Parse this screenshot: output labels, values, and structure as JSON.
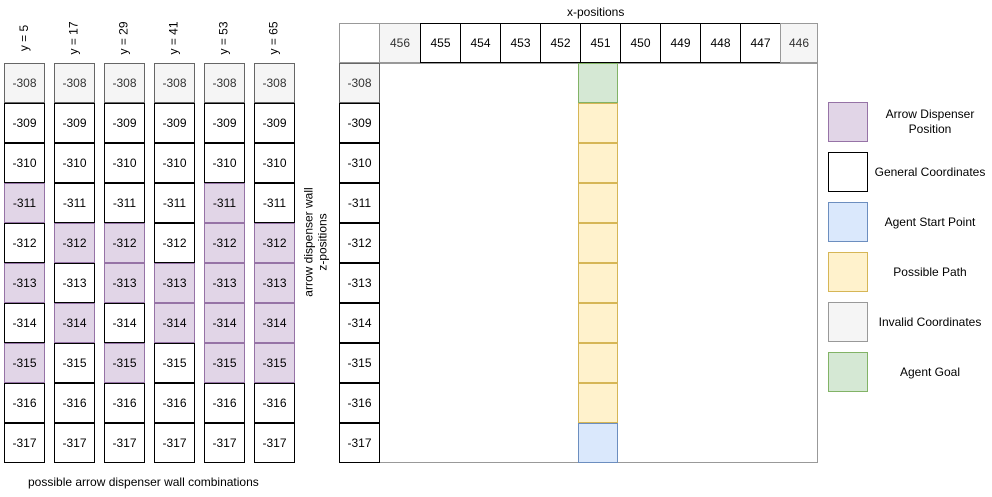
{
  "colors": {
    "purple": "#e1d5e7",
    "purple_border": "#9673a6",
    "invalid": "#f5f5f5",
    "general": "#ffffff",
    "blue": "#dae8fc",
    "blue_border": "#6c8ebf",
    "yellow": "#fff2cc",
    "yellow_border": "#d6b656",
    "green": "#d5e8d4",
    "green_border": "#82b366"
  },
  "combo_caption": "possible arrow dispenser wall combinations",
  "z_values": [
    "-308",
    "-309",
    "-310",
    "-311",
    "-312",
    "-313",
    "-314",
    "-315",
    "-316",
    "-317"
  ],
  "combos": [
    {
      "label": "y = 5",
      "purple": [
        "-311",
        "-313",
        "-315"
      ]
    },
    {
      "label": "y = 17",
      "purple": [
        "-312",
        "-314"
      ]
    },
    {
      "label": "y = 29",
      "purple": [
        "-312",
        "-313",
        "-315"
      ]
    },
    {
      "label": "y = 41",
      "purple": [
        "-313",
        "-314"
      ]
    },
    {
      "label": "y = 53",
      "purple": [
        "-311",
        "-312",
        "-313",
        "-314",
        "-315"
      ]
    },
    {
      "label": "y = 65",
      "purple": [
        "-312",
        "-313",
        "-314",
        "-315"
      ]
    }
  ],
  "grid": {
    "x_title": "x-positions",
    "z_title_line1": "arrow dispenser wall",
    "z_title_line2": "z-positions",
    "x_values": [
      "456",
      "455",
      "454",
      "453",
      "452",
      "451",
      "450",
      "449",
      "448",
      "447",
      "446"
    ],
    "invalid_x": [
      "456",
      "446"
    ],
    "path_column": "451",
    "path": [
      {
        "z": "-308",
        "kind": "goal"
      },
      {
        "z": "-309",
        "kind": "path"
      },
      {
        "z": "-310",
        "kind": "path"
      },
      {
        "z": "-311",
        "kind": "path"
      },
      {
        "z": "-312",
        "kind": "path"
      },
      {
        "z": "-313",
        "kind": "path"
      },
      {
        "z": "-314",
        "kind": "path"
      },
      {
        "z": "-315",
        "kind": "path"
      },
      {
        "z": "-316",
        "kind": "path"
      },
      {
        "z": "-317",
        "kind": "start"
      }
    ]
  },
  "legend": [
    {
      "label": "Arrow Dispenser Position",
      "color_key": "purple"
    },
    {
      "label": "General Coordinates",
      "color_key": "general"
    },
    {
      "label": "Agent Start Point",
      "color_key": "blue"
    },
    {
      "label": "Possible Path",
      "color_key": "yellow"
    },
    {
      "label": "Invalid Coordinates",
      "color_key": "invalid"
    },
    {
      "label": "Agent Goal",
      "color_key": "green"
    }
  ]
}
